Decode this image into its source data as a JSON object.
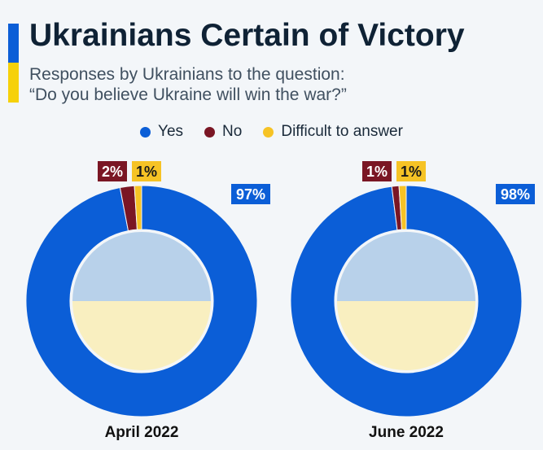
{
  "title": "Ukrainians Certain of Victory",
  "subtitle_line1": "Responses by Ukrainians to the question:",
  "subtitle_line2": "“Do you believe Ukraine will win the war?”",
  "colors": {
    "yes": "#0b5ed7",
    "no": "#7a1624",
    "difficult": "#f6c325",
    "flag_blue": "#b8d1ea",
    "flag_yellow": "#f9efc0"
  },
  "legend": [
    {
      "label": "Yes",
      "color": "#0b5ed7"
    },
    {
      "label": "No",
      "color": "#7a1624"
    },
    {
      "label": "Difficult to answer",
      "color": "#f6c325"
    }
  ],
  "chart_data": [
    {
      "type": "pie",
      "title": "April 2022",
      "categories": [
        "Yes",
        "No",
        "Difficult to answer"
      ],
      "values": [
        97,
        2,
        1
      ],
      "labels": [
        "97%",
        "2%",
        "1%"
      ]
    },
    {
      "type": "pie",
      "title": "June 2022",
      "categories": [
        "Yes",
        "No",
        "Difficult to answer"
      ],
      "values": [
        98,
        1,
        1
      ],
      "labels": [
        "98%",
        "1%",
        "1%"
      ]
    }
  ]
}
